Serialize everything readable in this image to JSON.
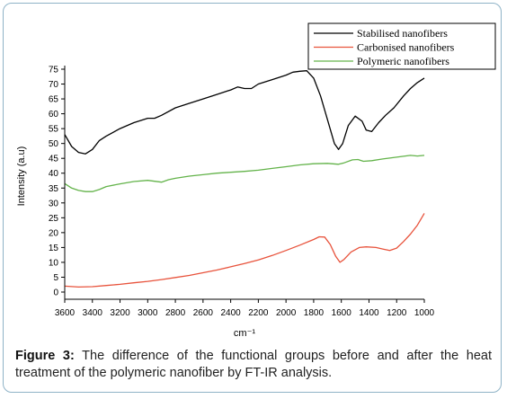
{
  "chart_data": {
    "type": "line",
    "xlabel": "cm⁻¹",
    "ylabel": "Intensity (a.u)",
    "xlim": [
      3600,
      1000
    ],
    "ylim": [
      0,
      75
    ],
    "x_ticks": [
      3600,
      3400,
      3200,
      3000,
      2800,
      2600,
      2400,
      2200,
      2000,
      1800,
      1600,
      1400,
      1200,
      1000
    ],
    "y_ticks": [
      0,
      5,
      10,
      15,
      20,
      25,
      30,
      35,
      40,
      45,
      50,
      55,
      60,
      65,
      70,
      75
    ],
    "grid": false,
    "legend_position": "top-right",
    "series": [
      {
        "name": "Stabilised nanofibers",
        "color": "#000000",
        "points": [
          [
            3600,
            53
          ],
          [
            3550,
            49
          ],
          [
            3500,
            47
          ],
          [
            3450,
            46.5
          ],
          [
            3400,
            48
          ],
          [
            3350,
            51
          ],
          [
            3300,
            52.5
          ],
          [
            3200,
            55
          ],
          [
            3100,
            57
          ],
          [
            3000,
            58.5
          ],
          [
            2950,
            58.5
          ],
          [
            2900,
            59.5
          ],
          [
            2800,
            62
          ],
          [
            2700,
            63.5
          ],
          [
            2600,
            65
          ],
          [
            2500,
            66.5
          ],
          [
            2400,
            68
          ],
          [
            2350,
            69
          ],
          [
            2300,
            68.5
          ],
          [
            2250,
            68.5
          ],
          [
            2200,
            70
          ],
          [
            2100,
            71.5
          ],
          [
            2000,
            73
          ],
          [
            1950,
            74
          ],
          [
            1900,
            74.3
          ],
          [
            1850,
            74.5
          ],
          [
            1800,
            72
          ],
          [
            1750,
            66
          ],
          [
            1700,
            58
          ],
          [
            1650,
            50
          ],
          [
            1620,
            48
          ],
          [
            1590,
            50
          ],
          [
            1550,
            56
          ],
          [
            1500,
            59.2
          ],
          [
            1450,
            57.5
          ],
          [
            1420,
            54.5
          ],
          [
            1380,
            54
          ],
          [
            1330,
            57
          ],
          [
            1280,
            59.5
          ],
          [
            1220,
            62
          ],
          [
            1150,
            66
          ],
          [
            1100,
            68.5
          ],
          [
            1050,
            70.5
          ],
          [
            1000,
            72
          ]
        ]
      },
      {
        "name": "Carbonised nanofibers",
        "color": "#e8533c",
        "points": [
          [
            3600,
            2
          ],
          [
            3500,
            1.7
          ],
          [
            3400,
            1.8
          ],
          [
            3300,
            2.2
          ],
          [
            3200,
            2.6
          ],
          [
            3100,
            3.1
          ],
          [
            3000,
            3.6
          ],
          [
            2900,
            4.2
          ],
          [
            2800,
            4.9
          ],
          [
            2700,
            5.6
          ],
          [
            2600,
            6.5
          ],
          [
            2500,
            7.4
          ],
          [
            2400,
            8.5
          ],
          [
            2300,
            9.6
          ],
          [
            2200,
            10.8
          ],
          [
            2100,
            12.3
          ],
          [
            2000,
            14
          ],
          [
            1900,
            15.8
          ],
          [
            1800,
            17.7
          ],
          [
            1760,
            18.6
          ],
          [
            1720,
            18.5
          ],
          [
            1680,
            16
          ],
          [
            1640,
            12
          ],
          [
            1610,
            10
          ],
          [
            1580,
            11
          ],
          [
            1530,
            13.5
          ],
          [
            1470,
            15
          ],
          [
            1420,
            15.2
          ],
          [
            1350,
            15
          ],
          [
            1300,
            14.5
          ],
          [
            1250,
            14
          ],
          [
            1200,
            14.8
          ],
          [
            1150,
            17
          ],
          [
            1100,
            19.5
          ],
          [
            1050,
            22.5
          ],
          [
            1000,
            26.5
          ]
        ]
      },
      {
        "name": "Polymeric nanofibers",
        "color": "#63b34a",
        "points": [
          [
            3600,
            36.5
          ],
          [
            3550,
            35
          ],
          [
            3500,
            34.2
          ],
          [
            3450,
            33.8
          ],
          [
            3400,
            33.8
          ],
          [
            3350,
            34.5
          ],
          [
            3300,
            35.5
          ],
          [
            3200,
            36.4
          ],
          [
            3100,
            37.2
          ],
          [
            3000,
            37.6
          ],
          [
            2950,
            37.3
          ],
          [
            2900,
            37
          ],
          [
            2850,
            37.8
          ],
          [
            2800,
            38.3
          ],
          [
            2700,
            39
          ],
          [
            2600,
            39.5
          ],
          [
            2500,
            40
          ],
          [
            2400,
            40.3
          ],
          [
            2300,
            40.6
          ],
          [
            2200,
            41
          ],
          [
            2100,
            41.6
          ],
          [
            2000,
            42.2
          ],
          [
            1900,
            42.8
          ],
          [
            1800,
            43.2
          ],
          [
            1700,
            43.3
          ],
          [
            1620,
            43
          ],
          [
            1580,
            43.5
          ],
          [
            1520,
            44.5
          ],
          [
            1480,
            44.6
          ],
          [
            1440,
            44
          ],
          [
            1380,
            44.2
          ],
          [
            1300,
            44.8
          ],
          [
            1200,
            45.4
          ],
          [
            1100,
            46
          ],
          [
            1050,
            45.8
          ],
          [
            1000,
            46
          ]
        ]
      }
    ]
  },
  "caption": {
    "label": "Figure 3:",
    "text": " The difference of the functional groups before and after the heat treatment of the polymeric nanofiber by FT-IR analysis."
  }
}
